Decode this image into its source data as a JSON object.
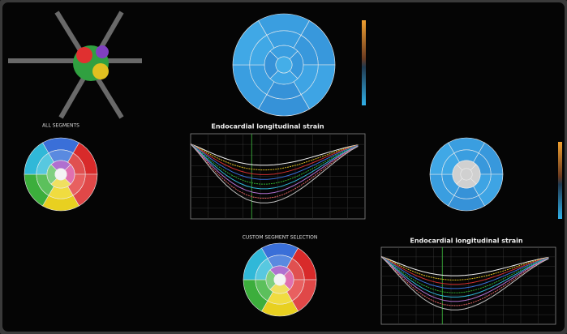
{
  "panels": {
    "all_segments": "ALL SEGMENTS",
    "custom_selection": "CUSTOM SEGMENT SELECTION",
    "top_chart_title": "Endocardial longitudinal strain",
    "bottom_chart_title": "Endocardial longitudinal strain"
  }
}
